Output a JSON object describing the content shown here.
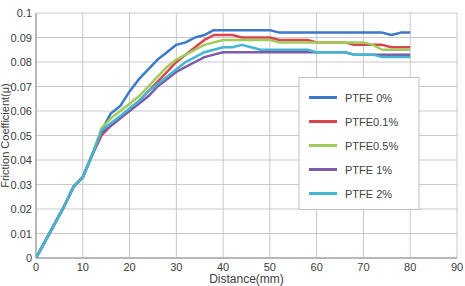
{
  "chart_data": {
    "type": "line",
    "x_label": "Distance(mm)",
    "y_label": "Friction Coefficient(μ)",
    "x": [
      0,
      2,
      4,
      6,
      8,
      10,
      12,
      14,
      16,
      18,
      20,
      22,
      24,
      26,
      28,
      30,
      32,
      34,
      36,
      38,
      40,
      42,
      44,
      46,
      48,
      50,
      52,
      54,
      56,
      58,
      60,
      62,
      64,
      66,
      68,
      70,
      72,
      74,
      76,
      78,
      80
    ],
    "series": [
      {
        "name": "PTFE 0%",
        "color": "#3d78c9",
        "values": [
          0,
          0.007,
          0.014,
          0.021,
          0.029,
          0.033,
          0.042,
          0.052,
          0.059,
          0.062,
          0.068,
          0.073,
          0.077,
          0.081,
          0.084,
          0.087,
          0.088,
          0.09,
          0.091,
          0.093,
          0.093,
          0.093,
          0.093,
          0.093,
          0.093,
          0.093,
          0.092,
          0.092,
          0.092,
          0.092,
          0.092,
          0.092,
          0.092,
          0.092,
          0.092,
          0.092,
          0.092,
          0.092,
          0.091,
          0.092,
          0.092
        ]
      },
      {
        "name": "PTFE0.1%",
        "color": "#d9454a",
        "values": [
          0,
          0.007,
          0.014,
          0.021,
          0.029,
          0.033,
          0.042,
          0.05,
          0.054,
          0.057,
          0.061,
          0.064,
          0.068,
          0.072,
          0.076,
          0.08,
          0.083,
          0.086,
          0.089,
          0.091,
          0.091,
          0.091,
          0.09,
          0.09,
          0.09,
          0.09,
          0.089,
          0.089,
          0.089,
          0.089,
          0.088,
          0.088,
          0.088,
          0.088,
          0.087,
          0.087,
          0.087,
          0.087,
          0.086,
          0.086,
          0.086
        ]
      },
      {
        "name": "PTFE0.5%",
        "color": "#9fcb5a",
        "values": [
          0,
          0.007,
          0.014,
          0.021,
          0.029,
          0.033,
          0.042,
          0.053,
          0.057,
          0.06,
          0.063,
          0.066,
          0.07,
          0.074,
          0.078,
          0.081,
          0.083,
          0.085,
          0.087,
          0.088,
          0.089,
          0.089,
          0.089,
          0.089,
          0.089,
          0.089,
          0.088,
          0.088,
          0.088,
          0.088,
          0.088,
          0.088,
          0.088,
          0.088,
          0.088,
          0.088,
          0.087,
          0.085,
          0.085,
          0.085,
          0.085
        ]
      },
      {
        "name": "PTFE 1%",
        "color": "#7e5aa8",
        "values": [
          0,
          0.007,
          0.014,
          0.021,
          0.029,
          0.033,
          0.042,
          0.051,
          0.054,
          0.057,
          0.06,
          0.063,
          0.066,
          0.07,
          0.073,
          0.076,
          0.078,
          0.08,
          0.082,
          0.083,
          0.084,
          0.084,
          0.084,
          0.084,
          0.084,
          0.084,
          0.084,
          0.084,
          0.084,
          0.084,
          0.084,
          0.084,
          0.084,
          0.084,
          0.083,
          0.083,
          0.083,
          0.083,
          0.083,
          0.083,
          0.083
        ]
      },
      {
        "name": "PTFE 2%",
        "color": "#43b6d2",
        "values": [
          0,
          0.007,
          0.014,
          0.021,
          0.029,
          0.033,
          0.042,
          0.052,
          0.055,
          0.058,
          0.061,
          0.064,
          0.068,
          0.071,
          0.074,
          0.077,
          0.08,
          0.082,
          0.084,
          0.085,
          0.086,
          0.086,
          0.087,
          0.086,
          0.085,
          0.085,
          0.085,
          0.085,
          0.085,
          0.085,
          0.084,
          0.084,
          0.084,
          0.084,
          0.083,
          0.083,
          0.083,
          0.082,
          0.082,
          0.082,
          0.082
        ]
      }
    ],
    "xlim": [
      0,
      90
    ],
    "xticks": [
      0,
      10,
      20,
      30,
      40,
      50,
      60,
      70,
      80,
      90
    ],
    "ylim": [
      0,
      0.1
    ],
    "yticks": [
      0,
      0.01,
      0.02,
      0.03,
      0.04,
      0.05,
      0.06,
      0.07,
      0.08,
      0.09,
      0.1
    ],
    "grid": true,
    "legend": "right"
  }
}
